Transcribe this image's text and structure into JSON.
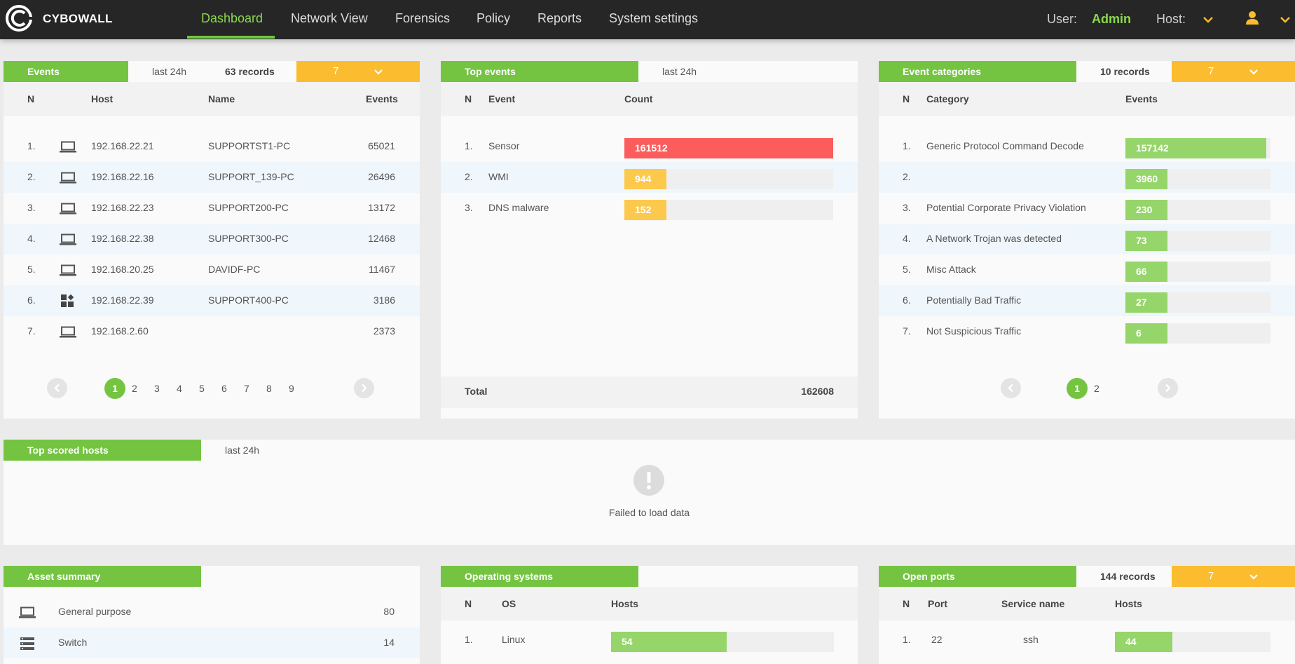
{
  "app": {
    "brand": "CYBOWALL"
  },
  "nav": {
    "items": [
      "Dashboard",
      "Network View",
      "Forensics",
      "Policy",
      "Reports",
      "System settings"
    ],
    "active": "Dashboard"
  },
  "top": {
    "user_label": "User:",
    "user_name": "Admin",
    "host_label": "Host:"
  },
  "colors": {
    "green": "#74c442",
    "amber": "#fbbc2f",
    "red": "#fc5c5c",
    "light_green": "#95d56a"
  },
  "events": {
    "title": "Events",
    "range": "last 24h",
    "records": "63 records",
    "limit": "7",
    "headers": {
      "n": "N",
      "host": "Host",
      "name": "Name",
      "events": "Events"
    },
    "rows": [
      {
        "n": "1.",
        "icon": "laptop-icon",
        "host": "192.168.22.21",
        "name": "SUPPORTST1-PC",
        "events": "65021"
      },
      {
        "n": "2.",
        "icon": "laptop-icon",
        "host": "192.168.22.16",
        "name": "SUPPORT_139-PC",
        "events": "26496"
      },
      {
        "n": "3.",
        "icon": "laptop-icon",
        "host": "192.168.22.23",
        "name": "SUPPORT200-PC",
        "events": "13172"
      },
      {
        "n": "4.",
        "icon": "laptop-icon",
        "host": "192.168.22.38",
        "name": "SUPPORT300-PC",
        "events": "12468"
      },
      {
        "n": "5.",
        "icon": "laptop-icon",
        "host": "192.168.20.25",
        "name": "DAVIDF-PC",
        "events": "11467"
      },
      {
        "n": "6.",
        "icon": "apps-icon",
        "host": "192.168.22.39",
        "name": "SUPPORT400-PC",
        "events": "3186"
      },
      {
        "n": "7.",
        "icon": "laptop-icon",
        "host": "192.168.2.60",
        "name": "",
        "events": "2373"
      }
    ],
    "pages": [
      "1",
      "2",
      "3",
      "4",
      "5",
      "6",
      "7",
      "8",
      "9"
    ]
  },
  "top_events": {
    "title": "Top events",
    "range": "last 24h",
    "headers": {
      "n": "N",
      "event": "Event",
      "count": "Count"
    },
    "rows": [
      {
        "n": "1.",
        "event": "Sensor",
        "count": "161512",
        "fill": 1.0,
        "color": "#fc5c5c"
      },
      {
        "n": "2.",
        "event": "WMI",
        "count": "944",
        "fill": 0.2,
        "color": "#fdc94c"
      },
      {
        "n": "3.",
        "event": "DNS malware",
        "count": "152",
        "fill": 0.2,
        "color": "#fdc94c"
      }
    ],
    "total_label": "Total",
    "total_value": "162608"
  },
  "categories": {
    "title": "Event categories",
    "records": "10 records",
    "limit": "7",
    "headers": {
      "n": "N",
      "category": "Category",
      "events": "Events"
    },
    "rows": [
      {
        "n": "1.",
        "category": "Generic Protocol Command Decode",
        "events": "157142",
        "fill": 0.97
      },
      {
        "n": "2.",
        "category": "",
        "events": "3960",
        "fill": 0.29
      },
      {
        "n": "3.",
        "category": "Potential Corporate Privacy Violation",
        "events": "230",
        "fill": 0.29
      },
      {
        "n": "4.",
        "category": "A Network Trojan was detected",
        "events": "73",
        "fill": 0.29
      },
      {
        "n": "5.",
        "category": "Misc Attack",
        "events": "66",
        "fill": 0.29
      },
      {
        "n": "6.",
        "category": "Potentially Bad Traffic",
        "events": "27",
        "fill": 0.29
      },
      {
        "n": "7.",
        "category": "Not Suspicious Traffic",
        "events": "6",
        "fill": 0.29
      }
    ],
    "pages": [
      "1",
      "2"
    ]
  },
  "scored": {
    "title": "Top scored hosts",
    "range": "last 24h",
    "error": "Failed to load data"
  },
  "assets": {
    "title": "Asset summary",
    "rows": [
      {
        "icon": "laptop-icon",
        "label": "General purpose",
        "value": "80"
      },
      {
        "icon": "switch-icon",
        "label": "Switch",
        "value": "14"
      }
    ]
  },
  "os": {
    "title": "Operating systems",
    "headers": {
      "n": "N",
      "os": "OS",
      "hosts": "Hosts"
    },
    "rows": [
      {
        "n": "1.",
        "os": "Linux",
        "hosts": "54",
        "fill": 0.52
      }
    ]
  },
  "ports": {
    "title": "Open ports",
    "records": "144 records",
    "limit": "7",
    "headers": {
      "n": "N",
      "port": "Port",
      "service": "Service name",
      "hosts": "Hosts"
    },
    "rows": [
      {
        "n": "1.",
        "port": "22",
        "service": "ssh",
        "hosts": "44",
        "fill": 0.37
      }
    ]
  }
}
